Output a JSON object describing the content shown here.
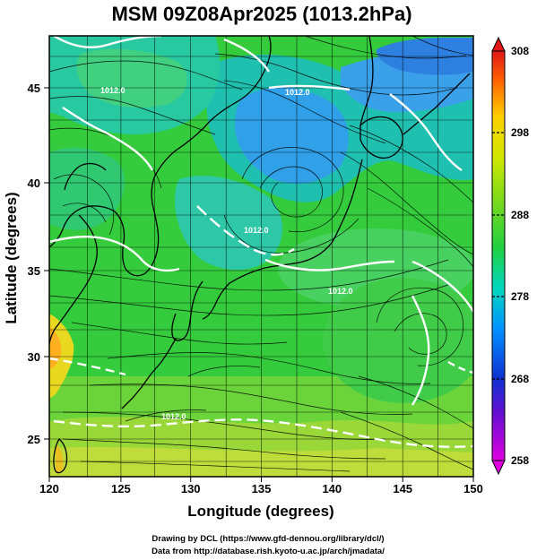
{
  "map": {
    "title": "MSM 09Z08Apr2025 (1013.2hPa)",
    "xlabel": "Longitude (degrees)",
    "ylabel": "Latitude  (degrees)",
    "lon_range": [
      120,
      150
    ],
    "lat_range": [
      22.4,
      47.6
    ],
    "lon_ticks": [
      "120",
      "125",
      "130",
      "135",
      "140",
      "145",
      "150"
    ],
    "lat_ticks": [
      "25",
      "30",
      "35",
      "40",
      "45"
    ],
    "grid": true,
    "contour_labels": [
      "1012.0",
      "1012.0",
      "1012.0",
      "1012.0",
      "1012.0"
    ]
  },
  "colorbar": {
    "min": 258,
    "max": 308,
    "ticks": [
      "258",
      "268",
      "278",
      "288",
      "298",
      "308"
    ],
    "colors": [
      "#e000e0",
      "#2020d0",
      "#00a0ff",
      "#00e0a0",
      "#30d030",
      "#b0e000",
      "#ffe000",
      "#ff7000",
      "#e01010"
    ]
  },
  "credits": {
    "line1": "Drawing by DCL (https://www.gfd-dennou.org/library/dcl/)",
    "line2": "Data from http://database.rish.kyoto-u.ac.jp/arch/jmadata/"
  }
}
